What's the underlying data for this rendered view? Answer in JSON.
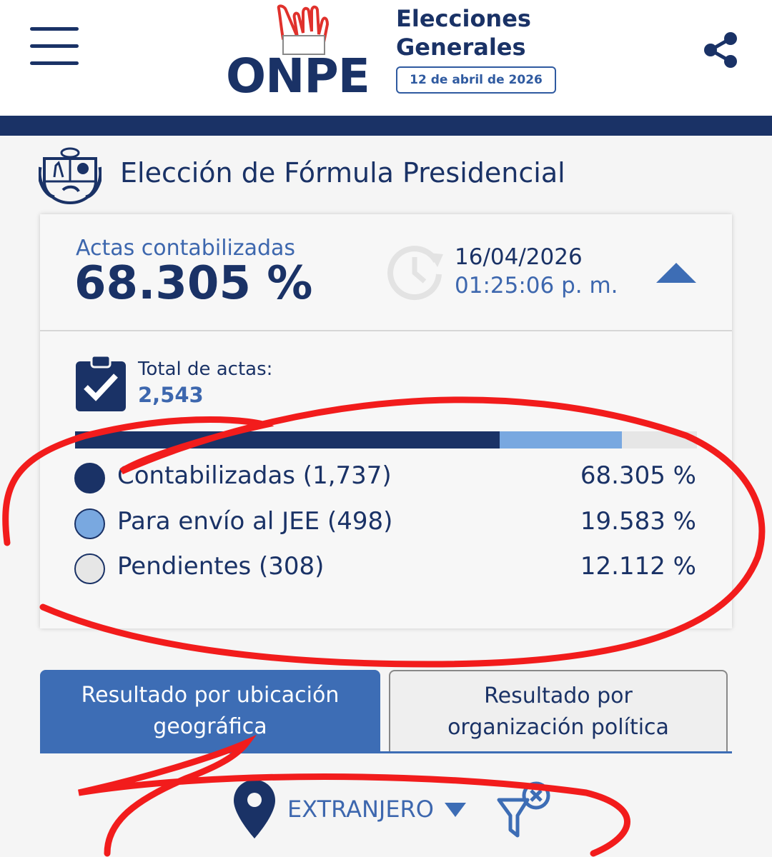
{
  "header": {
    "logo_text": "ONPE",
    "title_line1": "Elecciones",
    "title_line2": "Generales",
    "election_date": "12 de abril de 2026",
    "menu_icon": "hamburger-icon",
    "share_icon": "share-icon"
  },
  "section": {
    "title": "Elección de Fórmula Presidencial",
    "emblem_icon": "coat-of-arms-icon"
  },
  "summary": {
    "actas_label": "Actas contabilizadas",
    "actas_pct": "68.305 %",
    "update_date": "16/04/2026",
    "update_time": "01:25:06 p. m.",
    "clock_icon": "clock-history-icon",
    "collapse_icon": "triangle-up-icon",
    "total_label": "Total de actas:",
    "total_value": "2,543",
    "clipboard_icon": "clipboard-check-icon"
  },
  "progress": {
    "segments": [
      {
        "name": "Contabilizadas (1,737)",
        "pct_text": "68.305 %",
        "value": 68.305,
        "color": "#1a3266"
      },
      {
        "name": "Para envío al JEE (498)",
        "pct_text": "19.583 %",
        "value": 19.583,
        "color": "#79a8e0"
      },
      {
        "name": "Pendientes (308)",
        "pct_text": "12.112 %",
        "value": 12.112,
        "color": "#e6e6e6"
      }
    ]
  },
  "tabs": [
    {
      "label_line1": "Resultado por ubicación",
      "label_line2": "geográfica",
      "active": true
    },
    {
      "label_line1": "Resultado por",
      "label_line2": "organización política",
      "active": false
    }
  ],
  "location": {
    "value": "EXTRANJERO",
    "pin_icon": "location-pin-icon",
    "caret_icon": "caret-down-icon",
    "filter_icon": "filter-clear-icon"
  },
  "colors": {
    "navy": "#1a3266",
    "accent_blue": "#3d67ae",
    "light_blue": "#79a8e0",
    "annotation_red": "#f21c1c"
  }
}
